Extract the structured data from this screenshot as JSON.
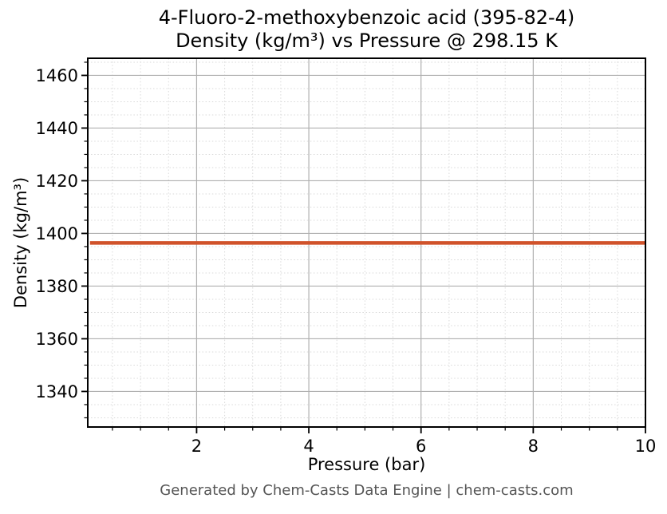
{
  "footer": {
    "text": "Generated by Chem-Casts Data Engine | chem-casts.com"
  },
  "colors": {
    "background": "#ffffff",
    "spine": "#000000",
    "major_grid": "#b0b0b0",
    "minor_grid": "#d9d9d9",
    "tick": "#000000",
    "text": "#000000",
    "footer_text": "#555555",
    "line": "#d0522a"
  },
  "chart_data": {
    "type": "line",
    "title": "4-Fluoro-2-methoxybenzoic acid (395-82-4)\nDensity (kg/m³) vs Pressure @ 298.15 K",
    "title_lines": [
      "4-Fluoro-2-methoxybenzoic acid (395-82-4)",
      "Density (kg/m³) vs Pressure @ 298.15 K"
    ],
    "xlabel": "Pressure (bar)",
    "ylabel": "Density (kg/m³)",
    "xlim": [
      0.06,
      10.0
    ],
    "ylim": [
      1326.5,
      1466.5
    ],
    "x_major_ticks": [
      2,
      4,
      6,
      8,
      10
    ],
    "x_minor_step": 0.5,
    "y_major_ticks": [
      1340,
      1360,
      1380,
      1400,
      1420,
      1440,
      1460
    ],
    "y_minor_step": 5,
    "grid": true,
    "legend": "none",
    "series": [
      {
        "name": "density-vs-pressure",
        "color": "#d0522a",
        "line_width": 4.5,
        "x": [
          0.1,
          1,
          2,
          3,
          4,
          5,
          6,
          7,
          8,
          9,
          10
        ],
        "y": [
          1396.4,
          1396.4,
          1396.4,
          1396.4,
          1396.4,
          1396.4,
          1396.4,
          1396.4,
          1396.4,
          1396.4,
          1396.4
        ]
      }
    ]
  }
}
